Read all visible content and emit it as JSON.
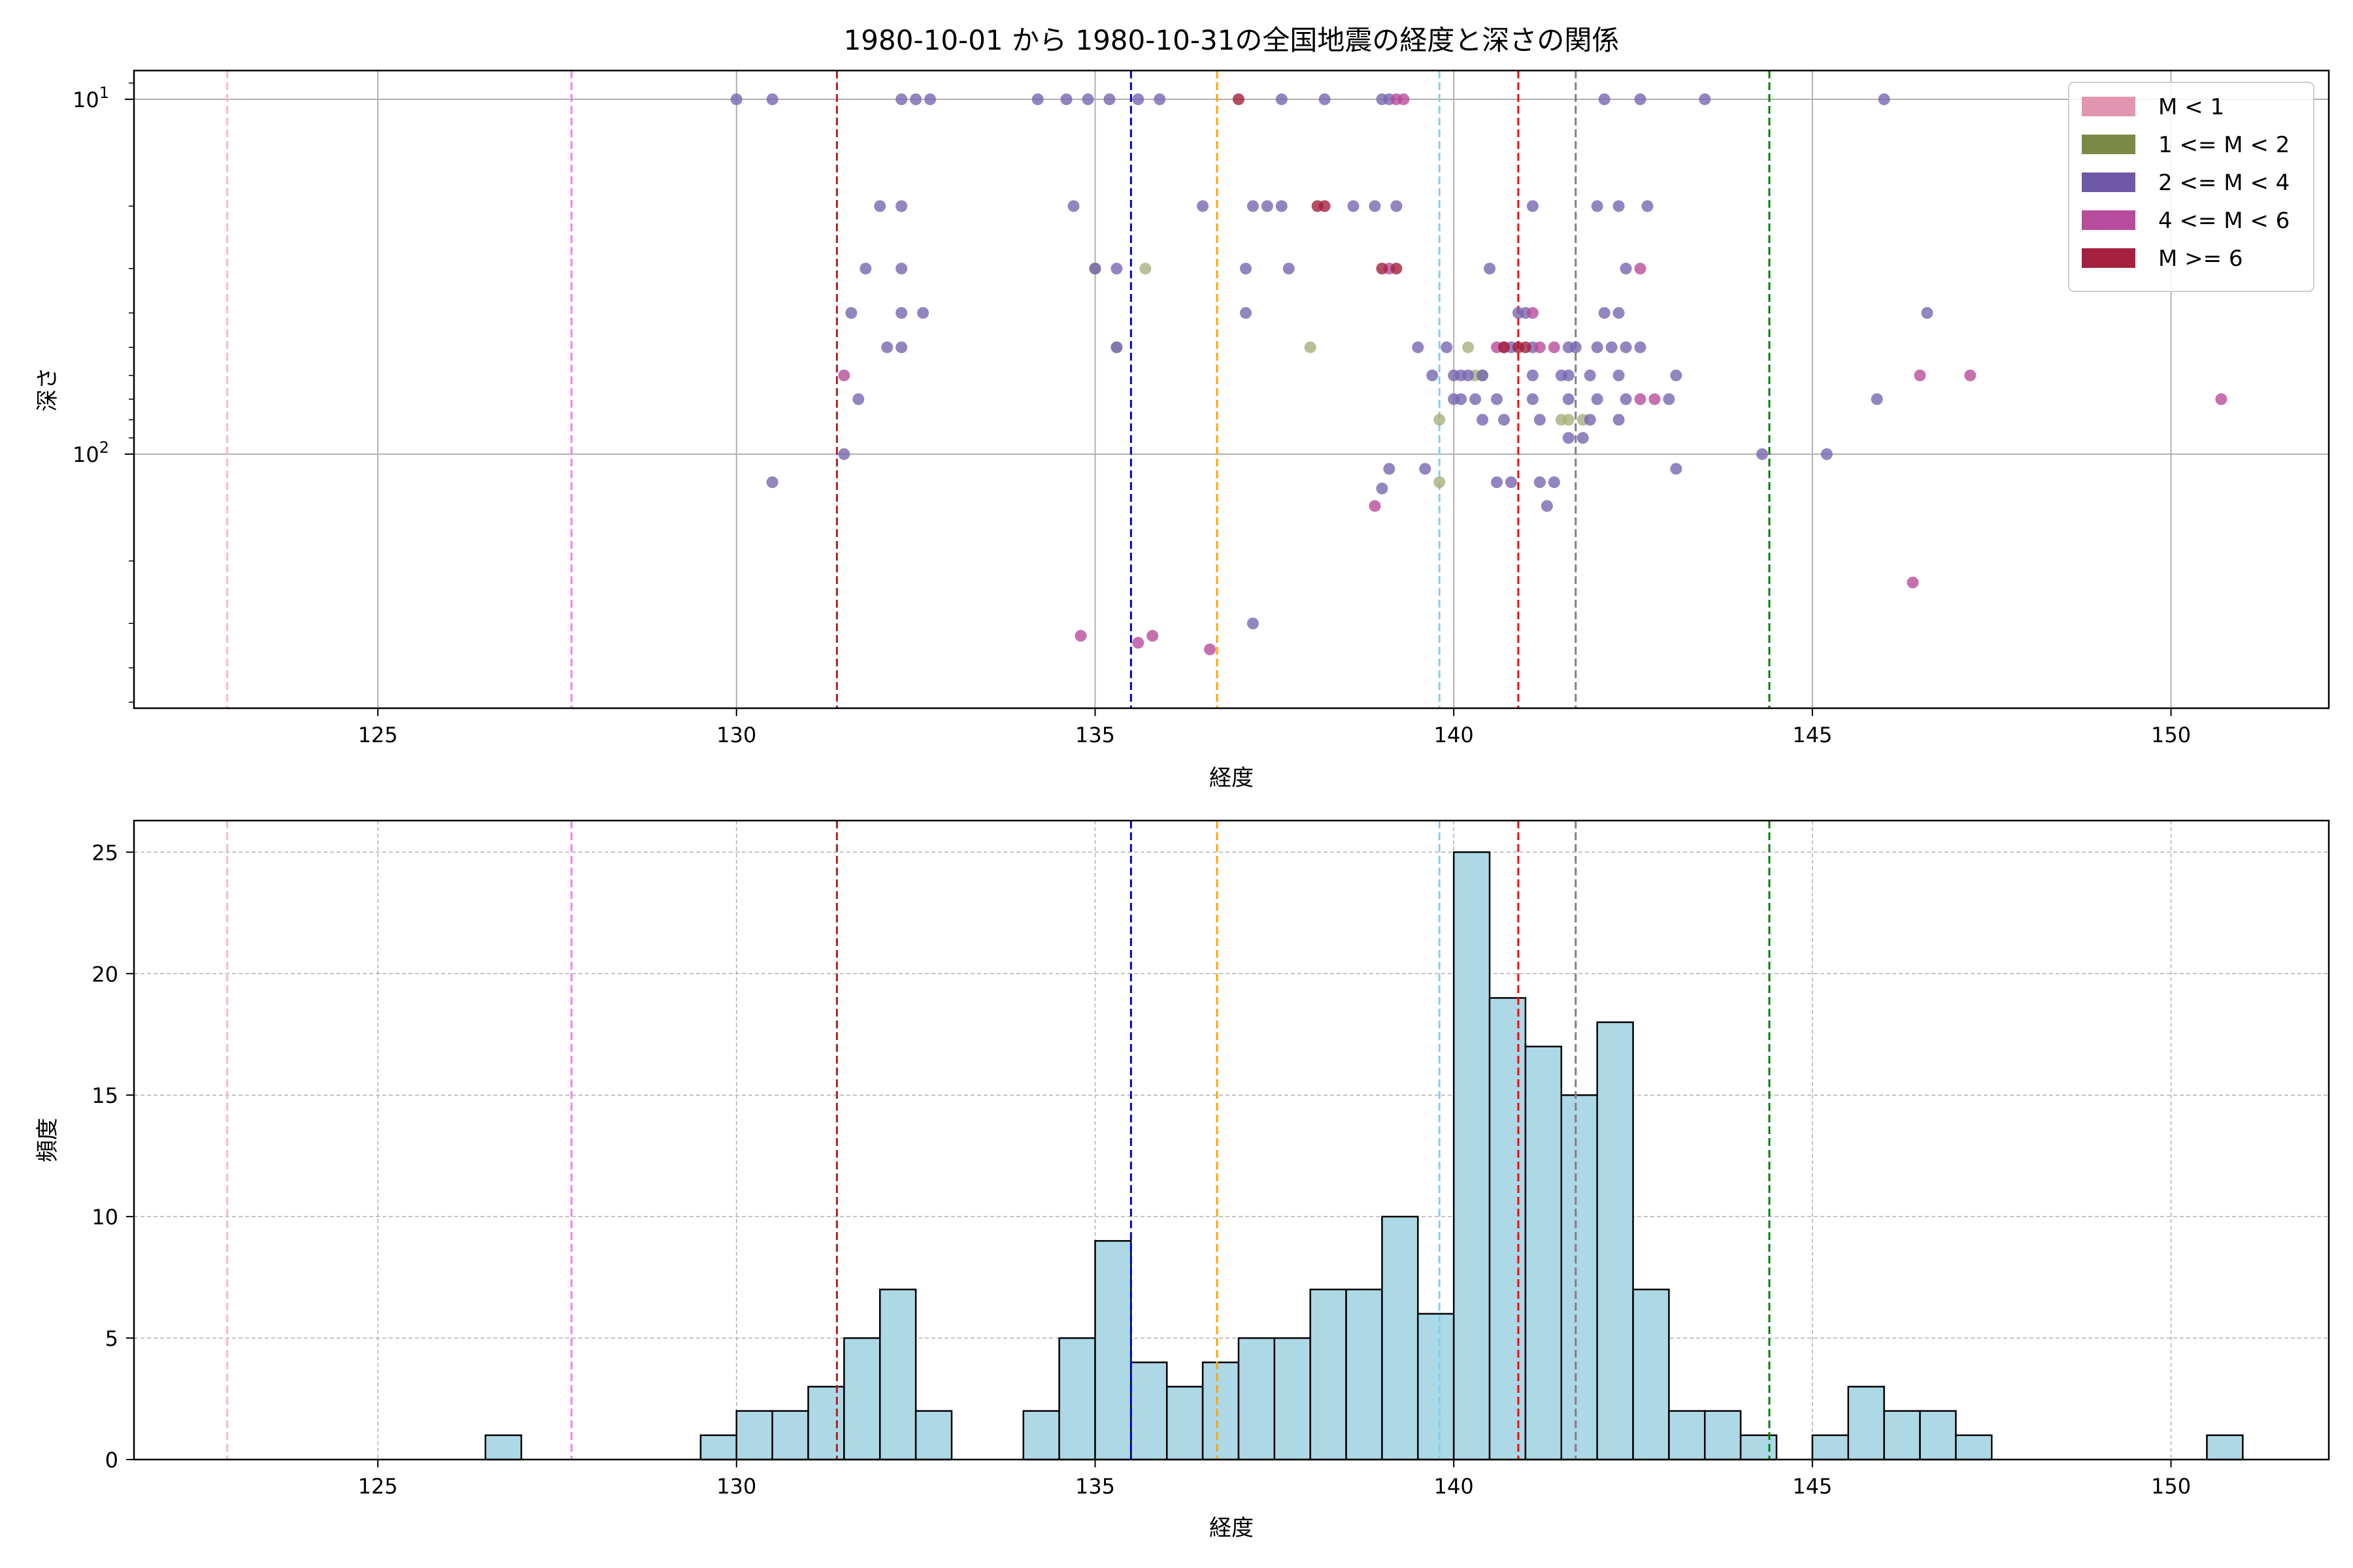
{
  "chart_data": [
    {
      "type": "scatter",
      "title": "1980-10-01 から 1980-10-31の全国地震の経度と深さの関係",
      "xlabel": "経度",
      "ylabel": "深さ",
      "xlim": [
        121.6,
        152.2
      ],
      "ylim": [
        520,
        8.3
      ],
      "y_scale": "log",
      "y_inverted": true,
      "grid": true,
      "x_ticks": [
        125,
        130,
        135,
        140,
        145,
        150
      ],
      "y_ticks": [
        {
          "value": 10,
          "base": "10",
          "exp": "1"
        },
        {
          "value": 100,
          "base": "10",
          "exp": "2"
        }
      ],
      "legend": {
        "placement": "top-right",
        "entries": [
          {
            "label": "M < 1",
            "color": "#e396b1"
          },
          {
            "label": "1 <= M < 2",
            "color": "#7a8a45"
          },
          {
            "label": "2 <= M < 4",
            "color": "#6f58a6"
          },
          {
            "label": "4 <= M < 6",
            "color": "#b84c9c"
          },
          {
            "label": "M >= 6",
            "color": "#a3203f"
          }
        ]
      },
      "vlines": [
        {
          "x": 122.9,
          "color": "#ffb6c1"
        },
        {
          "x": 127.7,
          "color": "#ee82ee"
        },
        {
          "x": 131.4,
          "color": "#b22222"
        },
        {
          "x": 135.5,
          "color": "#0000cd"
        },
        {
          "x": 136.7,
          "color": "#ffa500"
        },
        {
          "x": 139.8,
          "color": "#87ceeb"
        },
        {
          "x": 140.9,
          "color": "#ff0000"
        },
        {
          "x": 141.7,
          "color": "#808080"
        },
        {
          "x": 144.4,
          "color": "#008000"
        }
      ],
      "series": [
        {
          "name": "1 <= M < 2",
          "color": "#a9b07a",
          "points": [
            [
              135.0,
              30
            ],
            [
              135.7,
              30
            ],
            [
              135.3,
              50
            ],
            [
              138.0,
              50
            ],
            [
              139.8,
              80
            ],
            [
              139.8,
              120
            ],
            [
              140.2,
              50
            ],
            [
              140.3,
              60
            ],
            [
              140.4,
              60
            ],
            [
              141.5,
              80
            ],
            [
              141.6,
              80
            ],
            [
              141.8,
              80
            ],
            [
              135.0,
              30
            ]
          ]
        },
        {
          "name": "2 <= M < 4",
          "color": "#7766b0",
          "points": [
            [
              130.0,
              10
            ],
            [
              130.5,
              10
            ],
            [
              132.3,
              10
            ],
            [
              132.5,
              10
            ],
            [
              132.7,
              10
            ],
            [
              134.2,
              10
            ],
            [
              134.6,
              10
            ],
            [
              134.9,
              10
            ],
            [
              135.2,
              10
            ],
            [
              135.6,
              10
            ],
            [
              135.9,
              10
            ],
            [
              137.6,
              10
            ],
            [
              138.2,
              10
            ],
            [
              139.0,
              10
            ],
            [
              139.1,
              10
            ],
            [
              142.1,
              10
            ],
            [
              142.6,
              10
            ],
            [
              143.5,
              10
            ],
            [
              146.0,
              10
            ],
            [
              134.7,
              20
            ],
            [
              136.5,
              20
            ],
            [
              137.2,
              20
            ],
            [
              137.4,
              20
            ],
            [
              137.6,
              20
            ],
            [
              138.6,
              20
            ],
            [
              138.9,
              20
            ],
            [
              139.2,
              20
            ],
            [
              141.1,
              20
            ],
            [
              142.0,
              20
            ],
            [
              142.3,
              20
            ],
            [
              142.7,
              20
            ],
            [
              132.0,
              20
            ],
            [
              132.3,
              20
            ],
            [
              131.8,
              30
            ],
            [
              132.3,
              30
            ],
            [
              135.0,
              30
            ],
            [
              135.3,
              30
            ],
            [
              137.1,
              30
            ],
            [
              137.7,
              30
            ],
            [
              140.5,
              30
            ],
            [
              142.4,
              30
            ],
            [
              131.6,
              40
            ],
            [
              132.3,
              40
            ],
            [
              132.6,
              40
            ],
            [
              137.1,
              40
            ],
            [
              140.9,
              40
            ],
            [
              141.0,
              40
            ],
            [
              142.1,
              40
            ],
            [
              142.3,
              40
            ],
            [
              146.6,
              40
            ],
            [
              132.1,
              50
            ],
            [
              132.3,
              50
            ],
            [
              135.3,
              50
            ],
            [
              139.5,
              50
            ],
            [
              139.9,
              50
            ],
            [
              140.8,
              50
            ],
            [
              141.1,
              50
            ],
            [
              141.6,
              50
            ],
            [
              141.7,
              50
            ],
            [
              142.0,
              50
            ],
            [
              142.2,
              50
            ],
            [
              142.4,
              50
            ],
            [
              142.6,
              50
            ],
            [
              131.7,
              70
            ],
            [
              139.7,
              60
            ],
            [
              140.0,
              60
            ],
            [
              140.1,
              60
            ],
            [
              140.2,
              60
            ],
            [
              140.4,
              60
            ],
            [
              141.1,
              60
            ],
            [
              141.5,
              60
            ],
            [
              141.6,
              60
            ],
            [
              141.9,
              60
            ],
            [
              142.3,
              60
            ],
            [
              143.1,
              60
            ],
            [
              140.0,
              70
            ],
            [
              140.1,
              70
            ],
            [
              140.3,
              70
            ],
            [
              140.6,
              70
            ],
            [
              141.1,
              70
            ],
            [
              141.6,
              70
            ],
            [
              142.0,
              70
            ],
            [
              142.4,
              70
            ],
            [
              143.0,
              70
            ],
            [
              145.9,
              70
            ],
            [
              140.4,
              80
            ],
            [
              140.7,
              80
            ],
            [
              141.2,
              80
            ],
            [
              141.9,
              80
            ],
            [
              142.3,
              80
            ],
            [
              131.5,
              100
            ],
            [
              141.6,
              90
            ],
            [
              141.8,
              90
            ],
            [
              144.3,
              100
            ],
            [
              145.2,
              100
            ],
            [
              139.1,
              110
            ],
            [
              139.6,
              110
            ],
            [
              143.1,
              110
            ],
            [
              130.5,
              120
            ],
            [
              139.0,
              125
            ],
            [
              140.6,
              120
            ],
            [
              140.8,
              120
            ],
            [
              141.2,
              120
            ],
            [
              141.4,
              120
            ],
            [
              141.3,
              140
            ],
            [
              137.2,
              300
            ]
          ]
        },
        {
          "name": "4 <= M < 6",
          "color": "#b84c9c",
          "points": [
            [
              131.5,
              60
            ],
            [
              140.6,
              50
            ],
            [
              140.7,
              50
            ],
            [
              141.2,
              50
            ],
            [
              141.4,
              50
            ],
            [
              142.6,
              30
            ],
            [
              146.5,
              60
            ],
            [
              147.2,
              60
            ],
            [
              150.7,
              70
            ],
            [
              138.9,
              140
            ],
            [
              146.4,
              230
            ],
            [
              142.6,
              70
            ],
            [
              142.8,
              70
            ],
            [
              139.2,
              10
            ],
            [
              139.3,
              10
            ],
            [
              139.1,
              30
            ],
            [
              141.1,
              40
            ],
            [
              134.8,
              325
            ],
            [
              135.8,
              325
            ],
            [
              136.6,
              355
            ],
            [
              135.6,
              340
            ]
          ]
        },
        {
          "name": "M >= 6",
          "color": "#a3203f",
          "points": [
            [
              137.0,
              10
            ],
            [
              138.1,
              20
            ],
            [
              138.2,
              20
            ],
            [
              139.0,
              30
            ],
            [
              139.2,
              30
            ],
            [
              140.7,
              50
            ],
            [
              140.9,
              50
            ],
            [
              141.0,
              50
            ]
          ]
        }
      ]
    },
    {
      "type": "bar",
      "title": "",
      "xlabel": "経度",
      "ylabel": "頻度",
      "xlim": [
        121.6,
        152.2
      ],
      "ylim": [
        0,
        26.3
      ],
      "grid": true,
      "x_ticks": [
        125,
        130,
        135,
        140,
        145,
        150
      ],
      "y_ticks": [
        0,
        5,
        10,
        15,
        20,
        25
      ],
      "bin_width": 0.5,
      "bar_color": "#add8e6",
      "bins": [
        {
          "x": 126.5,
          "count": 1
        },
        {
          "x": 129.5,
          "count": 1
        },
        {
          "x": 130.0,
          "count": 2
        },
        {
          "x": 130.5,
          "count": 2
        },
        {
          "x": 131.0,
          "count": 3
        },
        {
          "x": 131.5,
          "count": 5
        },
        {
          "x": 132.0,
          "count": 7
        },
        {
          "x": 132.5,
          "count": 2
        },
        {
          "x": 134.0,
          "count": 2
        },
        {
          "x": 134.5,
          "count": 5
        },
        {
          "x": 135.0,
          "count": 9
        },
        {
          "x": 135.5,
          "count": 4
        },
        {
          "x": 136.0,
          "count": 3
        },
        {
          "x": 136.5,
          "count": 4
        },
        {
          "x": 137.0,
          "count": 5
        },
        {
          "x": 137.5,
          "count": 5
        },
        {
          "x": 138.0,
          "count": 7
        },
        {
          "x": 138.5,
          "count": 7
        },
        {
          "x": 139.0,
          "count": 10
        },
        {
          "x": 139.5,
          "count": 6
        },
        {
          "x": 140.0,
          "count": 25
        },
        {
          "x": 140.5,
          "count": 19
        },
        {
          "x": 141.0,
          "count": 17
        },
        {
          "x": 141.5,
          "count": 15
        },
        {
          "x": 142.0,
          "count": 18
        },
        {
          "x": 142.5,
          "count": 7
        },
        {
          "x": 143.0,
          "count": 2
        },
        {
          "x": 143.5,
          "count": 2
        },
        {
          "x": 144.0,
          "count": 1
        },
        {
          "x": 145.0,
          "count": 1
        },
        {
          "x": 145.5,
          "count": 3
        },
        {
          "x": 146.0,
          "count": 2
        },
        {
          "x": 146.5,
          "count": 2
        },
        {
          "x": 147.0,
          "count": 1
        },
        {
          "x": 150.5,
          "count": 1
        }
      ],
      "vlines": [
        {
          "x": 122.9,
          "color": "#ffb6c1"
        },
        {
          "x": 127.7,
          "color": "#ee82ee"
        },
        {
          "x": 131.4,
          "color": "#b22222"
        },
        {
          "x": 135.5,
          "color": "#0000cd"
        },
        {
          "x": 136.7,
          "color": "#ffa500"
        },
        {
          "x": 139.8,
          "color": "#87ceeb"
        },
        {
          "x": 140.9,
          "color": "#ff0000"
        },
        {
          "x": 141.7,
          "color": "#808080"
        },
        {
          "x": 144.4,
          "color": "#008000"
        }
      ]
    }
  ]
}
